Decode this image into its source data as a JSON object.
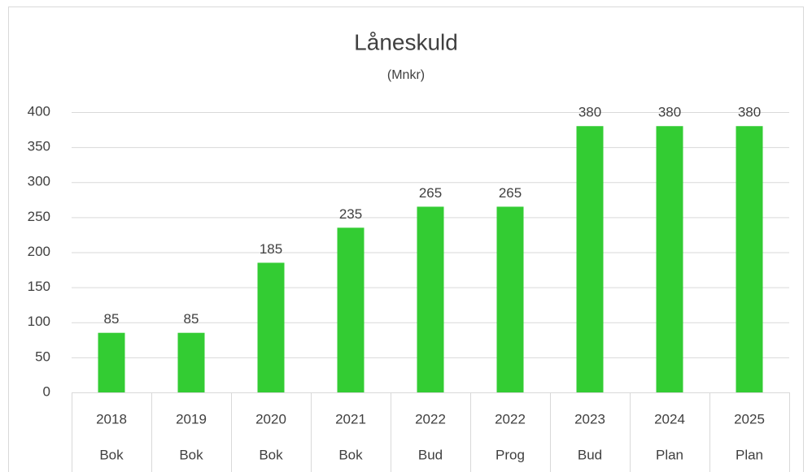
{
  "chart_data": {
    "type": "bar",
    "title": "Låneskuld",
    "subtitle": "(Mnkr)",
    "categories": [
      [
        "2018",
        "Bok"
      ],
      [
        "2019",
        "Bok"
      ],
      [
        "2020",
        "Bok"
      ],
      [
        "2021",
        "Bok"
      ],
      [
        "2022",
        "Bud"
      ],
      [
        "2022",
        "Prog"
      ],
      [
        "2023",
        "Bud"
      ],
      [
        "2024",
        "Plan"
      ],
      [
        "2025",
        "Plan"
      ]
    ],
    "values": [
      85,
      85,
      185,
      235,
      265,
      265,
      380,
      380,
      380
    ],
    "color": "#33cc33",
    "ylim": [
      0,
      400
    ],
    "yticks": [
      0,
      50,
      100,
      150,
      200,
      250,
      300,
      350,
      400
    ],
    "grid": true
  }
}
